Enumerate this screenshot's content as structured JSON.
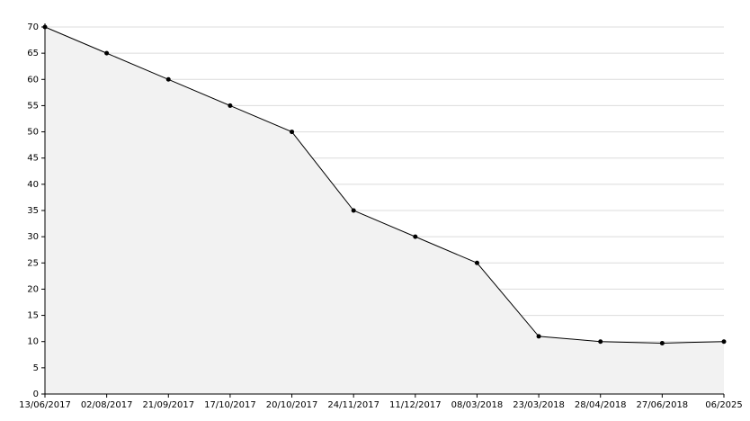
{
  "chart_data": {
    "type": "area",
    "categories": [
      "13/06/2017",
      "02/08/2017",
      "21/09/2017",
      "17/10/2017",
      "20/10/2017",
      "24/11/2017",
      "11/12/2017",
      "08/03/2018",
      "23/03/2018",
      "28/04/2018",
      "27/06/2018",
      "06/2025"
    ],
    "values": [
      70,
      65,
      60,
      55,
      50,
      35,
      30,
      25,
      11,
      10,
      9.7,
      10
    ],
    "color": "#000000",
    "fill": "#f2f2f2",
    "ylim": [
      0,
      70
    ],
    "yticks": [
      0,
      5,
      10,
      15,
      20,
      25,
      30,
      35,
      40,
      45,
      50,
      55,
      60,
      65,
      70
    ],
    "grid": true
  }
}
